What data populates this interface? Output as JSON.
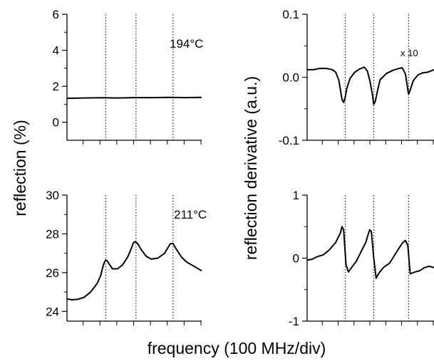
{
  "figure": {
    "ylabel_left": "reflection (%)",
    "ylabel_right": "reflection derivative (a.u.)",
    "xlabel": "frequency (100 MHz/div)"
  },
  "chart_data": [
    {
      "type": "line",
      "panel": "top-left",
      "annotation": "194°C",
      "ylim": [
        -1,
        6
      ],
      "yticks": [
        0,
        2,
        4,
        6
      ],
      "ytick_labels": [
        "0",
        "2",
        "4",
        "6"
      ],
      "xlim": [
        0,
        8
      ],
      "x_minor_ticks": 8,
      "vlines": [
        2.3,
        4.1,
        6.3
      ],
      "series": [
        {
          "x": [
            0,
            1,
            2,
            3,
            4,
            5,
            6,
            7,
            8
          ],
          "y": [
            1.33,
            1.35,
            1.36,
            1.35,
            1.37,
            1.37,
            1.38,
            1.37,
            1.38
          ]
        }
      ]
    },
    {
      "type": "line",
      "panel": "bottom-left",
      "annotation": "211°C",
      "ylim": [
        23.5,
        30
      ],
      "yticks": [
        24,
        26,
        28,
        30
      ],
      "ytick_labels": [
        "24",
        "26",
        "28",
        "30"
      ],
      "xlim": [
        0,
        8
      ],
      "x_minor_ticks": 8,
      "vlines": [
        2.3,
        4.1,
        6.3
      ],
      "series": [
        {
          "x": [
            0,
            0.3,
            0.6,
            1.0,
            1.4,
            1.8,
            2.0,
            2.1,
            2.2,
            2.3,
            2.4,
            2.5,
            2.7,
            3.0,
            3.3,
            3.6,
            3.8,
            3.95,
            4.05,
            4.2,
            4.4,
            4.7,
            5.0,
            5.4,
            5.8,
            6.0,
            6.15,
            6.3,
            6.5,
            6.8,
            7.1,
            7.5,
            7.8,
            8.0
          ],
          "y": [
            24.65,
            24.6,
            24.62,
            24.72,
            25.0,
            25.45,
            25.85,
            26.2,
            26.5,
            26.65,
            26.6,
            26.45,
            26.2,
            26.2,
            26.4,
            26.8,
            27.2,
            27.55,
            27.6,
            27.5,
            27.2,
            26.85,
            26.7,
            26.75,
            27.0,
            27.3,
            27.5,
            27.5,
            27.2,
            26.8,
            26.55,
            26.35,
            26.2,
            26.1
          ]
        }
      ]
    },
    {
      "type": "line",
      "panel": "top-right",
      "annotation": "x 10",
      "ylim": [
        -0.1,
        0.1
      ],
      "yticks": [
        -0.1,
        0.0,
        0.1
      ],
      "ytick_labels": [
        "-0.1",
        "0.0",
        "0.1"
      ],
      "xlim": [
        0,
        8
      ],
      "x_minor_ticks": 8,
      "vlines": [
        2.4,
        4.2,
        6.4
      ],
      "series": [
        {
          "x": [
            0,
            0.4,
            0.8,
            1.2,
            1.6,
            1.8,
            2.0,
            2.1,
            2.2,
            2.3,
            2.4,
            2.5,
            2.7,
            3.0,
            3.3,
            3.6,
            3.8,
            3.95,
            4.1,
            4.2,
            4.3,
            4.45,
            4.6,
            5.0,
            5.4,
            5.8,
            6.0,
            6.2,
            6.35,
            6.4,
            6.5,
            6.7,
            7.0,
            7.3,
            7.6,
            8.0
          ],
          "y": [
            0.012,
            0.012,
            0.014,
            0.014,
            0.012,
            0.008,
            -0.005,
            -0.02,
            -0.035,
            -0.04,
            -0.032,
            -0.018,
            -0.002,
            0.008,
            0.013,
            0.016,
            0.01,
            -0.005,
            -0.025,
            -0.043,
            -0.038,
            -0.02,
            -0.004,
            0.006,
            0.011,
            0.014,
            0.015,
            0.005,
            -0.02,
            -0.027,
            -0.02,
            -0.005,
            0.004,
            0.007,
            0.008,
            0.012
          ]
        }
      ]
    },
    {
      "type": "line",
      "panel": "bottom-right",
      "ylim": [
        -1,
        1
      ],
      "yticks": [
        -1,
        0,
        1
      ],
      "ytick_labels": [
        "-1",
        "0",
        "1"
      ],
      "xlim": [
        0,
        8
      ],
      "x_minor_ticks": 8,
      "vlines": [
        2.4,
        4.2,
        6.4
      ],
      "series": [
        {
          "x": [
            0,
            0.3,
            0.6,
            1.0,
            1.4,
            1.8,
            2.1,
            2.2,
            2.3,
            2.45,
            2.6,
            2.8,
            3.1,
            3.4,
            3.7,
            3.85,
            3.95,
            4.05,
            4.2,
            4.35,
            4.5,
            4.8,
            5.2,
            5.6,
            5.9,
            6.05,
            6.2,
            6.35,
            6.5,
            6.8,
            7.1,
            7.4,
            7.7,
            8.0
          ],
          "y": [
            -0.03,
            -0.02,
            0.02,
            0.05,
            0.13,
            0.25,
            0.4,
            0.5,
            0.45,
            -0.1,
            -0.22,
            -0.15,
            -0.05,
            0.1,
            0.25,
            0.38,
            0.45,
            0.42,
            0.0,
            -0.32,
            -0.25,
            -0.15,
            -0.08,
            0.08,
            0.2,
            0.25,
            0.28,
            0.2,
            -0.25,
            -0.22,
            -0.2,
            -0.15,
            -0.13,
            -0.15
          ]
        }
      ]
    }
  ]
}
